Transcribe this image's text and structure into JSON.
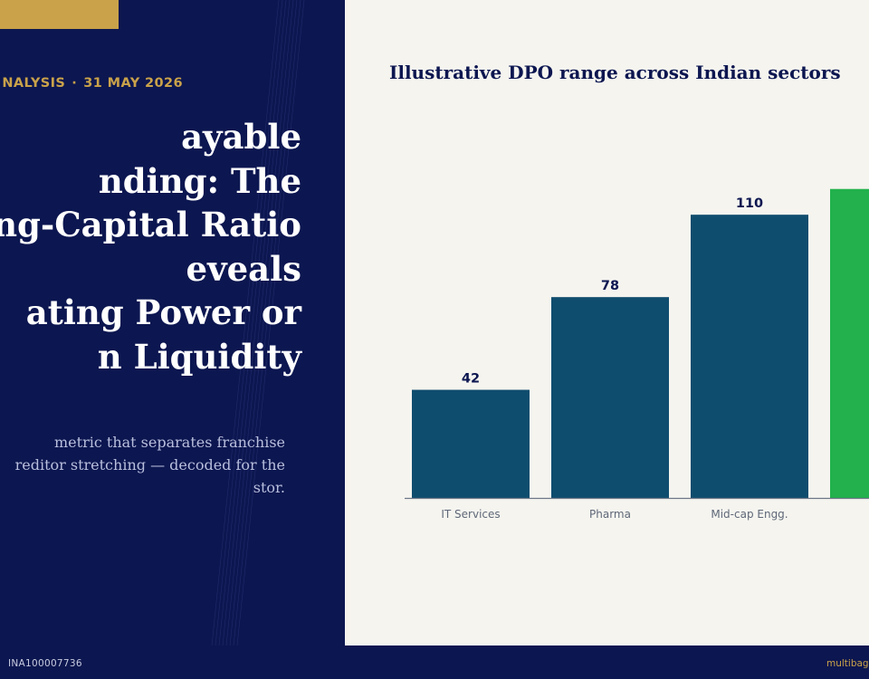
{
  "hero": {
    "eyebrow_category": "NALYSIS",
    "eyebrow_separator": "·",
    "eyebrow_date": "31 MAY 2026",
    "headline_lines": [
      "ayable",
      "nding: The",
      "ng-Capital Ratio",
      "eveals",
      "ating Power or",
      "n Liquidity"
    ],
    "subtext_lines": [
      "metric that separates franchise",
      "reditor stretching — decoded for the",
      "stor."
    ]
  },
  "chart_data": {
    "type": "bar",
    "title": "Illustrative DPO range across Indian sectors",
    "categories": [
      "IT Services",
      "Pharma",
      "Mid-cap Engg.",
      ""
    ],
    "values": [
      42,
      78,
      110,
      120
    ],
    "data_labels": [
      "42",
      "78",
      "110",
      ""
    ],
    "ylim": [
      0,
      130
    ],
    "colors": {
      "default": "#0f4d6e",
      "highlight": "#22b14c",
      "label": "#0c1650",
      "axis": "#6c7687",
      "tick": "#5f6878"
    }
  },
  "footer": {
    "registration": "INA100007736",
    "site": "multibag"
  }
}
